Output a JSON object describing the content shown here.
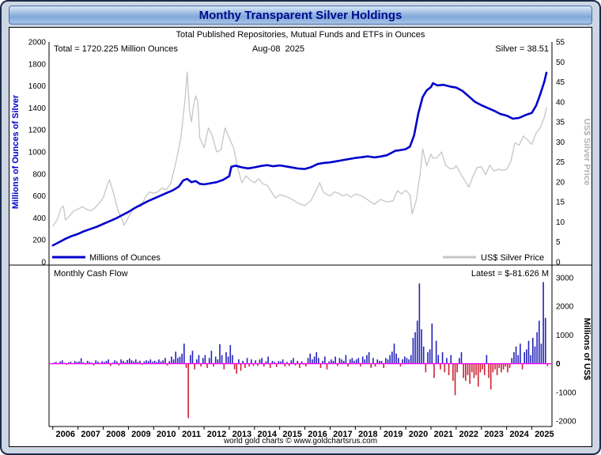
{
  "window": {
    "title": "Monthy Transparent Silver Holdings",
    "footer": "world gold charts © www.goldchartsrus.com"
  },
  "top_chart": {
    "subtitle": "Total Published Repositories, Mutual Funds and ETFs in Ounces",
    "annotations": {
      "total": "Total = 1720.225 Million Ounces",
      "date": "Aug-08  2025",
      "price": "Silver = 38.51"
    },
    "legend": {
      "holdings": "Millions of Ounces",
      "price": "US$ Silver Price"
    },
    "left_axis_title": "Millions of Ounces of Silver",
    "right_axis_title": "US$ Silver Price"
  },
  "cashflow_chart": {
    "title": "Monthly Cash Flow",
    "latest": "Latest = $-81.626 M",
    "right_axis_title": "Millions of US$"
  },
  "colors": {
    "holdings_line": "#0000cc",
    "price_line": "#c6c6c6",
    "bar_positive": "#2222bb",
    "bar_negative": "#cc2233",
    "zero_line": "#ff00ff",
    "title_text": "#000a8c"
  },
  "chart_data": [
    {
      "type": "line",
      "title": "Monthy Transparent Silver Holdings",
      "subtitle": "Total Published Repositories, Mutual Funds and ETFs in Ounces",
      "annotations": [
        "Total = 1720.225 Million Ounces",
        "Aug-08 2025",
        "Silver = 38.51"
      ],
      "x_ticks": [
        2006,
        2007,
        2008,
        2009,
        2010,
        2011,
        2012,
        2013,
        2014,
        2015,
        2016,
        2017,
        2018,
        2019,
        2020,
        2021,
        2022,
        2023,
        2024,
        2025
      ],
      "left_axis": {
        "title": "Millions of Ounces of Silver",
        "min": 0,
        "max": 2000,
        "step": 200
      },
      "right_axis": {
        "title": "US$ Silver Price",
        "min": 0,
        "max": 55,
        "step": 5
      },
      "grid": false,
      "legend_position": "bottom-inside",
      "series": [
        {
          "name": "Millions of Ounces",
          "axis": "left",
          "color": "#0000cc",
          "width": 2.6,
          "x": [
            2006.0,
            2006.25,
            2006.5,
            2006.75,
            2007.0,
            2007.25,
            2007.5,
            2007.75,
            2008.0,
            2008.25,
            2008.5,
            2008.75,
            2009.0,
            2009.25,
            2009.5,
            2009.75,
            2010.0,
            2010.25,
            2010.5,
            2010.75,
            2011.0,
            2011.17,
            2011.33,
            2011.5,
            2011.67,
            2011.83,
            2012.0,
            2012.25,
            2012.5,
            2012.75,
            2013.0,
            2013.08,
            2013.25,
            2013.5,
            2013.75,
            2014.0,
            2014.25,
            2014.5,
            2014.75,
            2015.0,
            2015.25,
            2015.5,
            2015.75,
            2016.0,
            2016.25,
            2016.5,
            2016.75,
            2017.0,
            2017.25,
            2017.5,
            2017.75,
            2018.0,
            2018.25,
            2018.5,
            2018.75,
            2019.0,
            2019.25,
            2019.5,
            2019.58,
            2019.75,
            2020.0,
            2020.17,
            2020.33,
            2020.5,
            2020.58,
            2020.67,
            2020.83,
            2021.0,
            2021.08,
            2021.25,
            2021.5,
            2021.75,
            2022.0,
            2022.25,
            2022.5,
            2022.75,
            2023.0,
            2023.25,
            2023.5,
            2023.75,
            2024.0,
            2024.25,
            2024.5,
            2024.75,
            2025.0,
            2025.17,
            2025.33,
            2025.5,
            2025.58
          ],
          "y": [
            150,
            180,
            210,
            235,
            255,
            280,
            300,
            320,
            345,
            370,
            395,
            425,
            455,
            490,
            520,
            550,
            575,
            600,
            625,
            650,
            685,
            740,
            755,
            725,
            735,
            710,
            705,
            715,
            725,
            745,
            780,
            865,
            875,
            860,
            850,
            860,
            872,
            880,
            870,
            878,
            868,
            858,
            848,
            845,
            862,
            890,
            900,
            905,
            915,
            925,
            935,
            945,
            952,
            960,
            950,
            958,
            970,
            1000,
            1010,
            1015,
            1025,
            1050,
            1150,
            1350,
            1420,
            1500,
            1560,
            1590,
            1625,
            1605,
            1610,
            1595,
            1585,
            1555,
            1505,
            1455,
            1425,
            1400,
            1375,
            1345,
            1330,
            1302,
            1310,
            1335,
            1355,
            1420,
            1520,
            1640,
            1720
          ]
        },
        {
          "name": "US$ Silver Price",
          "axis": "right",
          "color": "#c6c6c6",
          "width": 1.3,
          "x": [
            2006.0,
            2006.17,
            2006.33,
            2006.42,
            2006.5,
            2006.67,
            2006.83,
            2007.0,
            2007.17,
            2007.33,
            2007.5,
            2007.67,
            2007.83,
            2008.0,
            2008.17,
            2008.25,
            2008.42,
            2008.58,
            2008.75,
            2008.83,
            2009.0,
            2009.17,
            2009.33,
            2009.5,
            2009.67,
            2009.83,
            2010.0,
            2010.17,
            2010.33,
            2010.5,
            2010.67,
            2010.83,
            2011.0,
            2011.08,
            2011.25,
            2011.33,
            2011.42,
            2011.5,
            2011.58,
            2011.67,
            2011.75,
            2011.83,
            2012.0,
            2012.17,
            2012.33,
            2012.5,
            2012.67,
            2012.83,
            2013.0,
            2013.17,
            2013.33,
            2013.5,
            2013.67,
            2013.83,
            2014.0,
            2014.17,
            2014.33,
            2014.5,
            2014.67,
            2014.83,
            2015.0,
            2015.25,
            2015.5,
            2015.75,
            2016.0,
            2016.25,
            2016.5,
            2016.58,
            2016.75,
            2017.0,
            2017.17,
            2017.33,
            2017.5,
            2017.67,
            2017.83,
            2018.0,
            2018.25,
            2018.5,
            2018.75,
            2019.0,
            2019.25,
            2019.5,
            2019.67,
            2019.83,
            2020.0,
            2020.17,
            2020.25,
            2020.42,
            2020.58,
            2020.67,
            2020.83,
            2021.0,
            2021.08,
            2021.25,
            2021.42,
            2021.58,
            2021.75,
            2021.92,
            2022.0,
            2022.17,
            2022.33,
            2022.5,
            2022.67,
            2022.83,
            2023.0,
            2023.17,
            2023.33,
            2023.5,
            2023.67,
            2023.83,
            2024.0,
            2024.17,
            2024.33,
            2024.5,
            2024.67,
            2024.83,
            2025.0,
            2025.17,
            2025.33,
            2025.5,
            2025.58
          ],
          "y": [
            9,
            10.5,
            13.5,
            14,
            10.5,
            11.5,
            12.8,
            13.2,
            13.8,
            13.2,
            12.8,
            13.5,
            14.6,
            16,
            19.5,
            20.5,
            17,
            13,
            10.5,
            9.2,
            11.2,
            13,
            14,
            13.8,
            16.2,
            17.5,
            17.2,
            17.5,
            18.5,
            18,
            19.5,
            23.5,
            28.5,
            31,
            41,
            47.5,
            38,
            35,
            39,
            41.5,
            40,
            31,
            28.5,
            33.5,
            31.5,
            27.5,
            28,
            33.5,
            31,
            28.5,
            23.5,
            19.8,
            21.5,
            20.5,
            19.8,
            20.8,
            19.5,
            19.2,
            17.5,
            16,
            16.8,
            16.4,
            15.6,
            14.6,
            14.1,
            15.4,
            18.6,
            19.8,
            17.3,
            16.5,
            17.5,
            17.2,
            16.5,
            16.9,
            16.2,
            17,
            16.5,
            15.5,
            14.4,
            15.6,
            15,
            15.3,
            17.8,
            17,
            17.9,
            16.7,
            12,
            15.5,
            22.5,
            28.3,
            24,
            26.9,
            25.9,
            26.1,
            27.5,
            24.2,
            23.3,
            23.4,
            24.1,
            22.1,
            20.5,
            18.7,
            21.4,
            23.6,
            23.8,
            21.8,
            24.2,
            22.7,
            23.2,
            22.9,
            23.1,
            25.1,
            29.8,
            29.2,
            31.5,
            30.5,
            29.4,
            32.2,
            33.5,
            36.2,
            38.51
          ]
        }
      ]
    },
    {
      "type": "bar",
      "title": "Monthly Cash Flow",
      "latest_label": "Latest = $-81.626 M",
      "latest_value": -81.626,
      "right_axis": {
        "title": "Millions of US$",
        "min": -2000,
        "max": 3000,
        "step": 1000
      },
      "bar_colors": {
        "positive": "#2222bb",
        "negative": "#cc2233"
      },
      "zero_line_color": "#ff00ff",
      "start_year": 2006,
      "frequency": "monthly",
      "values": [
        40,
        60,
        -20,
        80,
        120,
        30,
        -40,
        50,
        70,
        20,
        90,
        60,
        80,
        190,
        50,
        -30,
        100,
        60,
        40,
        -60,
        120,
        70,
        30,
        90,
        60,
        100,
        150,
        -80,
        40,
        120,
        80,
        -60,
        150,
        100,
        50,
        130,
        180,
        120,
        80,
        150,
        60,
        100,
        -40,
        80,
        120,
        90,
        150,
        70,
        100,
        60,
        150,
        80,
        120,
        200,
        -60,
        90,
        250,
        150,
        420,
        200,
        250,
        350,
        700,
        -150,
        -1900,
        300,
        450,
        -200,
        150,
        300,
        -100,
        200,
        300,
        -150,
        200,
        450,
        -100,
        250,
        150,
        680,
        300,
        -200,
        400,
        250,
        650,
        300,
        -200,
        -350,
        150,
        -250,
        100,
        -150,
        200,
        -100,
        150,
        -80,
        120,
        -80,
        150,
        200,
        -100,
        80,
        250,
        -150,
        100,
        60,
        -120,
        90,
        80,
        150,
        -100,
        60,
        -80,
        120,
        200,
        -60,
        100,
        -150,
        80,
        -40,
        -100,
        200,
        350,
        150,
        250,
        400,
        200,
        -150,
        100,
        250,
        -200,
        80,
        150,
        100,
        250,
        -80,
        200,
        150,
        100,
        300,
        -100,
        150,
        200,
        100,
        150,
        200,
        -100,
        250,
        150,
        300,
        400,
        -150,
        200,
        -100,
        150,
        100,
        100,
        -150,
        200,
        150,
        300,
        420,
        700,
        350,
        200,
        -100,
        150,
        250,
        200,
        150,
        300,
        900,
        1100,
        1500,
        2800,
        1200,
        600,
        -300,
        400,
        500,
        1400,
        -500,
        800,
        300,
        -200,
        400,
        -300,
        200,
        -400,
        300,
        -600,
        -1100,
        -300,
        200,
        400,
        -500,
        -600,
        -400,
        -700,
        -300,
        -500,
        -400,
        -800,
        -300,
        -200,
        -400,
        300,
        -500,
        -900,
        -300,
        -200,
        -400,
        -150,
        -300,
        -200,
        -100,
        -300,
        -150,
        200,
        400,
        600,
        300,
        700,
        -200,
        400,
        500,
        800,
        300,
        900,
        600,
        1100,
        1500,
        700,
        2850,
        1600,
        -81.626
      ]
    }
  ]
}
